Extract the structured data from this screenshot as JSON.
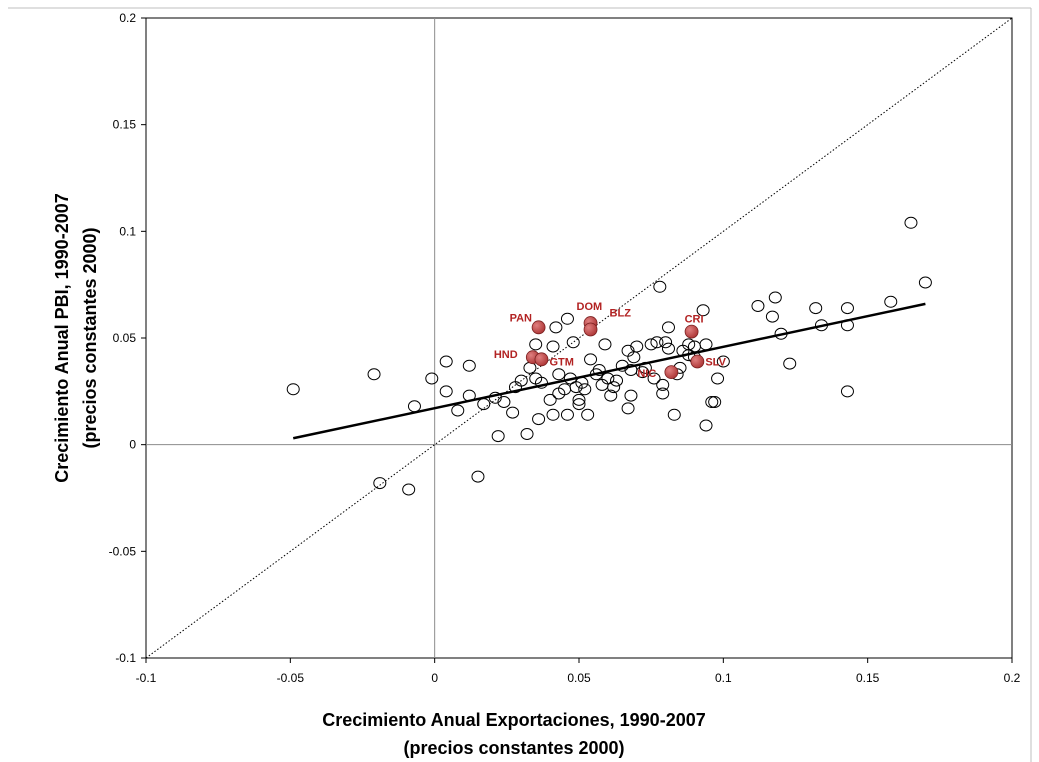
{
  "chart_data": {
    "type": "scatter",
    "title": "",
    "xlabel_lines": [
      "Crecimiento Anual Exportaciones, 1990-2007",
      "(precios constantes 2000)"
    ],
    "ylabel_lines": [
      "Crecimiento Anual PBI, 1990-2007",
      "(precios constantes 2000)"
    ],
    "xlim": [
      -0.1,
      0.2
    ],
    "ylim": [
      -0.1,
      0.2
    ],
    "xticks": [
      -0.1,
      -0.05,
      0,
      0.05,
      0.1,
      0.15,
      0.2
    ],
    "yticks": [
      -0.1,
      -0.05,
      0,
      0.05,
      0.1,
      0.15,
      0.2
    ],
    "xtick_labels": [
      "-0.1",
      "-0.05",
      "0",
      "0.05",
      "0.1",
      "0.15",
      "0.2"
    ],
    "ytick_labels": [
      "-0.1",
      "-0.05",
      "0",
      "0.05",
      "0.1",
      "0.15",
      "0.2"
    ],
    "grid": false,
    "reference_lines": [
      "x=0",
      "y=0",
      "y=x (dotted)"
    ],
    "trendline": {
      "x": [
        -0.049,
        0.17
      ],
      "y": [
        0.003,
        0.066
      ]
    },
    "highlight_color": "#b03a3a",
    "highlighted": [
      {
        "label": "PAN",
        "x": 0.036,
        "y": 0.055
      },
      {
        "label": "DOM",
        "x": 0.054,
        "y": 0.057
      },
      {
        "label": "BLZ",
        "x": 0.054,
        "y": 0.054
      },
      {
        "label": "CRI",
        "x": 0.089,
        "y": 0.053
      },
      {
        "label": "HND",
        "x": 0.034,
        "y": 0.041
      },
      {
        "label": "GTM",
        "x": 0.037,
        "y": 0.04
      },
      {
        "label": "NIC",
        "x": 0.082,
        "y": 0.034
      },
      {
        "label": "SLV",
        "x": 0.091,
        "y": 0.039
      }
    ],
    "points": [
      [
        -0.049,
        0.026
      ],
      [
        -0.021,
        0.033
      ],
      [
        -0.019,
        -0.018
      ],
      [
        -0.009,
        -0.021
      ],
      [
        -0.007,
        0.018
      ],
      [
        -0.001,
        0.031
      ],
      [
        0.004,
        0.039
      ],
      [
        0.004,
        0.025
      ],
      [
        0.008,
        0.016
      ],
      [
        0.012,
        0.037
      ],
      [
        0.012,
        0.023
      ],
      [
        0.015,
        -0.015
      ],
      [
        0.017,
        0.019
      ],
      [
        0.021,
        0.022
      ],
      [
        0.022,
        0.004
      ],
      [
        0.024,
        0.02
      ],
      [
        0.027,
        0.015
      ],
      [
        0.028,
        0.027
      ],
      [
        0.03,
        0.03
      ],
      [
        0.032,
        0.005
      ],
      [
        0.033,
        0.036
      ],
      [
        0.035,
        0.047
      ],
      [
        0.035,
        0.031
      ],
      [
        0.036,
        0.012
      ],
      [
        0.037,
        0.029
      ],
      [
        0.04,
        0.021
      ],
      [
        0.041,
        0.014
      ],
      [
        0.041,
        0.046
      ],
      [
        0.042,
        0.055
      ],
      [
        0.043,
        0.024
      ],
      [
        0.043,
        0.033
      ],
      [
        0.045,
        0.026
      ],
      [
        0.046,
        0.059
      ],
      [
        0.046,
        0.014
      ],
      [
        0.047,
        0.031
      ],
      [
        0.048,
        0.048
      ],
      [
        0.049,
        0.027
      ],
      [
        0.05,
        0.021
      ],
      [
        0.05,
        0.019
      ],
      [
        0.051,
        0.029
      ],
      [
        0.052,
        0.026
      ],
      [
        0.053,
        0.014
      ],
      [
        0.054,
        0.04
      ],
      [
        0.056,
        0.033
      ],
      [
        0.057,
        0.035
      ],
      [
        0.058,
        0.028
      ],
      [
        0.059,
        0.047
      ],
      [
        0.06,
        0.031
      ],
      [
        0.061,
        0.023
      ],
      [
        0.062,
        0.027
      ],
      [
        0.063,
        0.03
      ],
      [
        0.065,
        0.037
      ],
      [
        0.067,
        0.044
      ],
      [
        0.067,
        0.017
      ],
      [
        0.068,
        0.023
      ],
      [
        0.068,
        0.035
      ],
      [
        0.069,
        0.041
      ],
      [
        0.07,
        0.046
      ],
      [
        0.072,
        0.034
      ],
      [
        0.073,
        0.036
      ],
      [
        0.075,
        0.047
      ],
      [
        0.076,
        0.031
      ],
      [
        0.077,
        0.048
      ],
      [
        0.078,
        0.074
      ],
      [
        0.079,
        0.028
      ],
      [
        0.079,
        0.024
      ],
      [
        0.08,
        0.048
      ],
      [
        0.081,
        0.055
      ],
      [
        0.081,
        0.045
      ],
      [
        0.083,
        0.014
      ],
      [
        0.084,
        0.033
      ],
      [
        0.085,
        0.036
      ],
      [
        0.086,
        0.044
      ],
      [
        0.088,
        0.047
      ],
      [
        0.088,
        0.042
      ],
      [
        0.09,
        0.046
      ],
      [
        0.09,
        0.041
      ],
      [
        0.093,
        0.063
      ],
      [
        0.094,
        0.009
      ],
      [
        0.094,
        0.047
      ],
      [
        0.096,
        0.02
      ],
      [
        0.097,
        0.02
      ],
      [
        0.098,
        0.031
      ],
      [
        0.1,
        0.039
      ],
      [
        0.112,
        0.065
      ],
      [
        0.117,
        0.06
      ],
      [
        0.118,
        0.069
      ],
      [
        0.12,
        0.052
      ],
      [
        0.123,
        0.038
      ],
      [
        0.132,
        0.064
      ],
      [
        0.134,
        0.056
      ],
      [
        0.143,
        0.064
      ],
      [
        0.143,
        0.056
      ],
      [
        0.143,
        0.025
      ],
      [
        0.158,
        0.067
      ],
      [
        0.165,
        0.104
      ],
      [
        0.17,
        0.076
      ]
    ]
  }
}
